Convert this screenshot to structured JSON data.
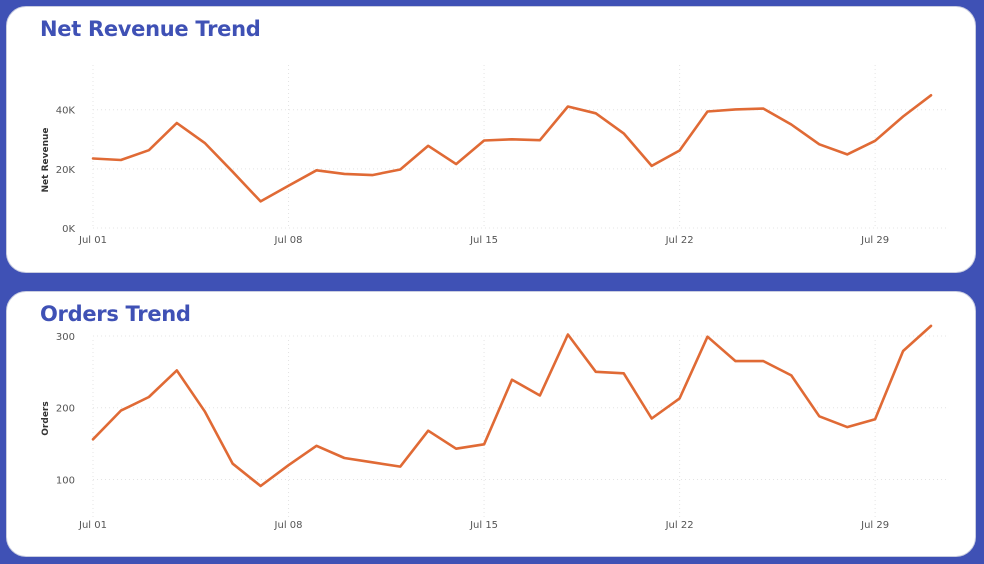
{
  "colors": {
    "background": "#3f51b5",
    "title": "#3f51b5",
    "line": "#e06a35",
    "panel": "#ffffff"
  },
  "chart_data": [
    {
      "type": "line",
      "title": "Net Revenue Trend",
      "xlabel": "",
      "ylabel": "Net Revenue",
      "ylim": [
        0,
        46000
      ],
      "x_ticks": [
        "Jul 01",
        "Jul 08",
        "Jul 15",
        "Jul 22",
        "Jul 29"
      ],
      "y_ticks": [
        "0K",
        "20K",
        "40K"
      ],
      "y_tick_values": [
        0,
        20000,
        40000
      ],
      "grid": true,
      "x": [
        "Jul 01",
        "Jul 02",
        "Jul 03",
        "Jul 04",
        "Jul 05",
        "Jul 06",
        "Jul 07",
        "Jul 08",
        "Jul 09",
        "Jul 10",
        "Jul 11",
        "Jul 12",
        "Jul 13",
        "Jul 14",
        "Jul 15",
        "Jul 16",
        "Jul 17",
        "Jul 18",
        "Jul 19",
        "Jul 20",
        "Jul 21",
        "Jul 22",
        "Jul 23",
        "Jul 24",
        "Jul 25",
        "Jul 26",
        "Jul 27",
        "Jul 28",
        "Jul 29",
        "Jul 30",
        "Jul 31"
      ],
      "values": [
        23500,
        23000,
        26300,
        35500,
        28800,
        19000,
        9000,
        14300,
        19500,
        18300,
        17900,
        19800,
        27800,
        21600,
        29600,
        30000,
        29700,
        41100,
        38800,
        32000,
        21000,
        26200,
        39400,
        40100,
        40400,
        35000,
        28300,
        24900,
        29500,
        37700,
        44900
      ]
    },
    {
      "type": "line",
      "title": "Orders Trend",
      "xlabel": "",
      "ylabel": "Orders",
      "ylim": [
        45,
        325
      ],
      "x_ticks": [
        "Jul 01",
        "Jul 08",
        "Jul 15",
        "Jul 22",
        "Jul 29"
      ],
      "y_ticks": [
        "100",
        "200",
        "300"
      ],
      "y_tick_values": [
        100,
        200,
        300
      ],
      "grid": true,
      "x": [
        "Jul 01",
        "Jul 02",
        "Jul 03",
        "Jul 04",
        "Jul 05",
        "Jul 06",
        "Jul 07",
        "Jul 08",
        "Jul 09",
        "Jul 10",
        "Jul 11",
        "Jul 12",
        "Jul 13",
        "Jul 14",
        "Jul 15",
        "Jul 16",
        "Jul 17",
        "Jul 18",
        "Jul 19",
        "Jul 20",
        "Jul 21",
        "Jul 22",
        "Jul 23",
        "Jul 24",
        "Jul 25",
        "Jul 26",
        "Jul 27",
        "Jul 28",
        "Jul 29",
        "Jul 30",
        "Jul 31"
      ],
      "values": [
        156,
        196,
        215,
        252,
        195,
        122,
        91,
        120,
        147,
        130,
        124,
        118,
        168,
        143,
        149,
        239,
        217,
        302,
        250,
        248,
        185,
        213,
        299,
        265,
        265,
        245,
        188,
        173,
        184,
        279,
        314
      ]
    }
  ]
}
